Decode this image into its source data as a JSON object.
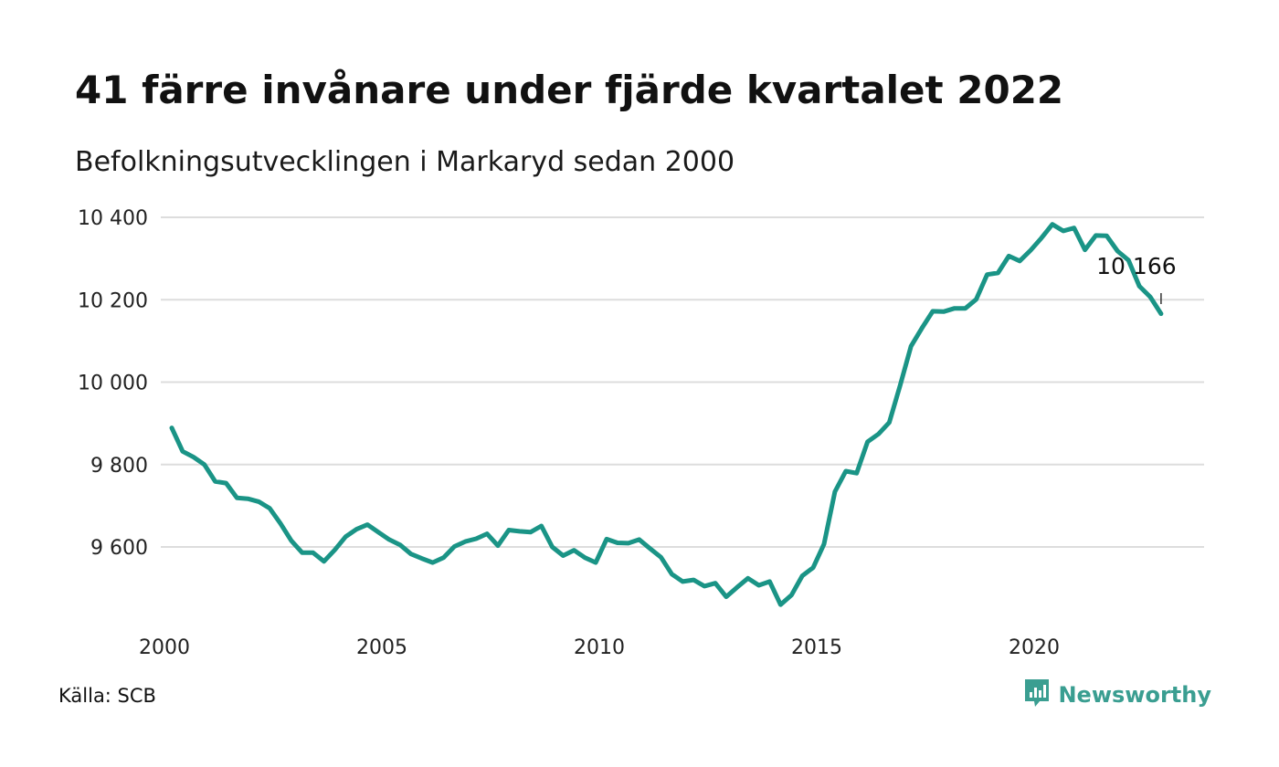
{
  "header": {
    "title": "41 färre invånare under fjärde kvartalet 2022",
    "subtitle": "Befolkningsutvecklingen i Markaryd sedan 2000"
  },
  "footer": {
    "source": "Källa: SCB",
    "brand": "Newsworthy"
  },
  "colors": {
    "line": "#1a9486",
    "grid": "#dddddd",
    "brand": "#3a9e91"
  },
  "chart_data": {
    "type": "line",
    "title": "41 färre invånare under fjärde kvartalet 2022",
    "subtitle": "Befolkningsutvecklingen i Markaryd sedan 2000",
    "xlabel": "",
    "ylabel": "",
    "xlim": [
      2000,
      2024.5
    ],
    "ylim": [
      9430,
      10400
    ],
    "x_ticks": [
      2000,
      2005,
      2010,
      2015,
      2020
    ],
    "x_tick_labels": [
      "2000",
      "2005",
      "2010",
      "2015",
      "2020"
    ],
    "y_ticks": [
      9600,
      9800,
      10000,
      10200,
      10400
    ],
    "y_tick_labels": [
      "9 600",
      "9 800",
      "10 000",
      "10 200",
      "10 400"
    ],
    "grid": "horizontal",
    "end_label": "10 166",
    "series": [
      {
        "x": [
          2000.0,
          2000.25,
          2000.5,
          2000.75,
          2001.0,
          2001.25,
          2001.5,
          2001.75,
          2002.0,
          2002.25,
          2002.5,
          2002.75,
          2003.0,
          2003.25,
          2003.5,
          2003.75,
          2004.0,
          2004.25,
          2004.5,
          2004.75,
          2005.0,
          2005.25,
          2005.5,
          2005.75,
          2006.0,
          2006.25,
          2006.5,
          2006.75,
          2007.0,
          2007.25,
          2007.5,
          2007.75,
          2008.0,
          2008.25,
          2008.5,
          2008.75,
          2009.0,
          2009.25,
          2009.5,
          2009.75,
          2010.0,
          2010.25,
          2010.5,
          2010.75,
          2011.0,
          2011.25,
          2011.5,
          2011.75,
          2012.0,
          2012.25,
          2012.5,
          2012.75,
          2013.0,
          2013.25,
          2013.5,
          2013.75,
          2014.0,
          2014.25,
          2014.5,
          2014.75,
          2015.0,
          2015.25,
          2015.5,
          2015.75,
          2016.0,
          2016.25,
          2016.5,
          2016.75,
          2017.0,
          2017.25,
          2017.5,
          2017.75,
          2018.0,
          2018.25,
          2018.5,
          2018.75,
          2019.0,
          2019.25,
          2019.5,
          2019.75,
          2020.0,
          2020.25,
          2020.5,
          2020.75,
          2021.0,
          2021.25,
          2021.5,
          2021.75,
          2022.0,
          2022.25,
          2022.5,
          2022.75
        ],
        "values": [
          9889,
          9832,
          9818,
          9800,
          9759,
          9755,
          9719,
          9717,
          9710,
          9694,
          9657,
          9615,
          9586,
          9586,
          9565,
          9593,
          9625,
          9643,
          9654,
          9636,
          9618,
          9605,
          9583,
          9572,
          9562,
          9574,
          9601,
          9613,
          9620,
          9632,
          9603,
          9641,
          9638,
          9636,
          9651,
          9600,
          9579,
          9592,
          9574,
          9562,
          9619,
          9610,
          9609,
          9618,
          9596,
          9575,
          9534,
          9516,
          9520,
          9505,
          9512,
          9479,
          9502,
          9524,
          9507,
          9516,
          9460,
          9483,
          9530,
          9550,
          9607,
          9734,
          9784,
          9779,
          9855,
          9874,
          9902,
          9992,
          10087,
          10131,
          10172,
          10171,
          10179,
          10179,
          10201,
          10261,
          10265,
          10306,
          10294,
          10320,
          10350,
          10383,
          10367,
          10374,
          10321,
          10356,
          10355,
          10318,
          10296,
          10233,
          10207,
          10166
        ]
      }
    ]
  }
}
